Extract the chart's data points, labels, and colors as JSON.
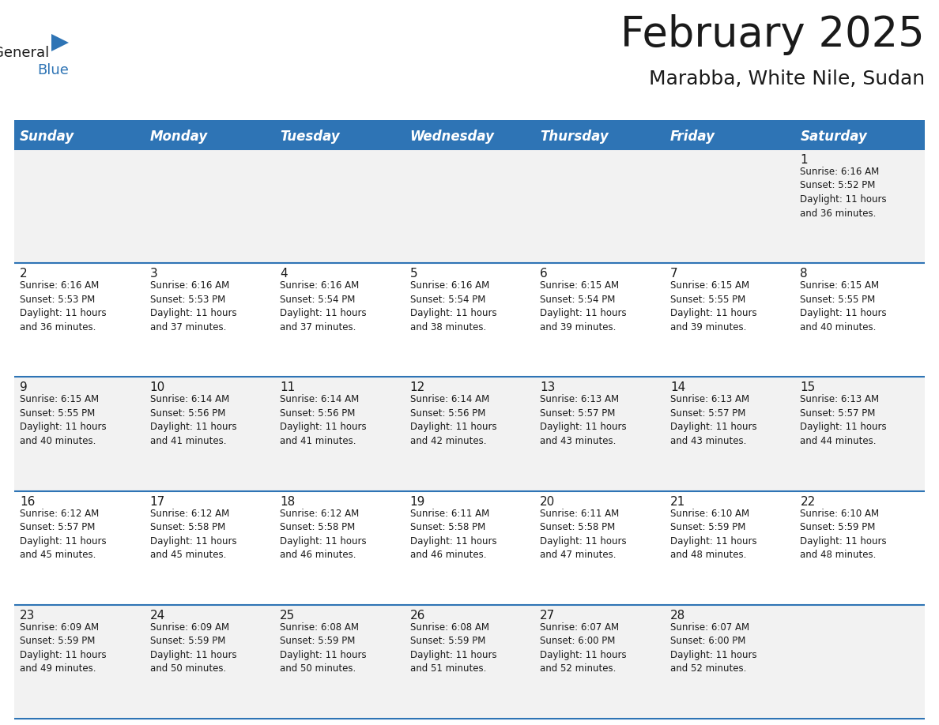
{
  "title": "February 2025",
  "subtitle": "Marabba, White Nile, Sudan",
  "header_color": "#2E74B5",
  "header_text_color": "#FFFFFF",
  "cell_bg_white": "#FFFFFF",
  "cell_bg_gray": "#F2F2F2",
  "border_color": "#2E74B5",
  "text_color": "#1a1a1a",
  "blue_text_color": "#2E74B5",
  "day_headers": [
    "Sunday",
    "Monday",
    "Tuesday",
    "Wednesday",
    "Thursday",
    "Friday",
    "Saturday"
  ],
  "title_fontsize": 38,
  "subtitle_fontsize": 18,
  "header_fontsize": 12,
  "cell_fontsize": 8.5,
  "day_num_fontsize": 11,
  "logo_general_fontsize": 13,
  "logo_blue_fontsize": 13,
  "calendar": [
    [
      {
        "day": null,
        "info": null
      },
      {
        "day": null,
        "info": null
      },
      {
        "day": null,
        "info": null
      },
      {
        "day": null,
        "info": null
      },
      {
        "day": null,
        "info": null
      },
      {
        "day": null,
        "info": null
      },
      {
        "day": 1,
        "info": "Sunrise: 6:16 AM\nSunset: 5:52 PM\nDaylight: 11 hours\nand 36 minutes."
      }
    ],
    [
      {
        "day": 2,
        "info": "Sunrise: 6:16 AM\nSunset: 5:53 PM\nDaylight: 11 hours\nand 36 minutes."
      },
      {
        "day": 3,
        "info": "Sunrise: 6:16 AM\nSunset: 5:53 PM\nDaylight: 11 hours\nand 37 minutes."
      },
      {
        "day": 4,
        "info": "Sunrise: 6:16 AM\nSunset: 5:54 PM\nDaylight: 11 hours\nand 37 minutes."
      },
      {
        "day": 5,
        "info": "Sunrise: 6:16 AM\nSunset: 5:54 PM\nDaylight: 11 hours\nand 38 minutes."
      },
      {
        "day": 6,
        "info": "Sunrise: 6:15 AM\nSunset: 5:54 PM\nDaylight: 11 hours\nand 39 minutes."
      },
      {
        "day": 7,
        "info": "Sunrise: 6:15 AM\nSunset: 5:55 PM\nDaylight: 11 hours\nand 39 minutes."
      },
      {
        "day": 8,
        "info": "Sunrise: 6:15 AM\nSunset: 5:55 PM\nDaylight: 11 hours\nand 40 minutes."
      }
    ],
    [
      {
        "day": 9,
        "info": "Sunrise: 6:15 AM\nSunset: 5:55 PM\nDaylight: 11 hours\nand 40 minutes."
      },
      {
        "day": 10,
        "info": "Sunrise: 6:14 AM\nSunset: 5:56 PM\nDaylight: 11 hours\nand 41 minutes."
      },
      {
        "day": 11,
        "info": "Sunrise: 6:14 AM\nSunset: 5:56 PM\nDaylight: 11 hours\nand 41 minutes."
      },
      {
        "day": 12,
        "info": "Sunrise: 6:14 AM\nSunset: 5:56 PM\nDaylight: 11 hours\nand 42 minutes."
      },
      {
        "day": 13,
        "info": "Sunrise: 6:13 AM\nSunset: 5:57 PM\nDaylight: 11 hours\nand 43 minutes."
      },
      {
        "day": 14,
        "info": "Sunrise: 6:13 AM\nSunset: 5:57 PM\nDaylight: 11 hours\nand 43 minutes."
      },
      {
        "day": 15,
        "info": "Sunrise: 6:13 AM\nSunset: 5:57 PM\nDaylight: 11 hours\nand 44 minutes."
      }
    ],
    [
      {
        "day": 16,
        "info": "Sunrise: 6:12 AM\nSunset: 5:57 PM\nDaylight: 11 hours\nand 45 minutes."
      },
      {
        "day": 17,
        "info": "Sunrise: 6:12 AM\nSunset: 5:58 PM\nDaylight: 11 hours\nand 45 minutes."
      },
      {
        "day": 18,
        "info": "Sunrise: 6:12 AM\nSunset: 5:58 PM\nDaylight: 11 hours\nand 46 minutes."
      },
      {
        "day": 19,
        "info": "Sunrise: 6:11 AM\nSunset: 5:58 PM\nDaylight: 11 hours\nand 46 minutes."
      },
      {
        "day": 20,
        "info": "Sunrise: 6:11 AM\nSunset: 5:58 PM\nDaylight: 11 hours\nand 47 minutes."
      },
      {
        "day": 21,
        "info": "Sunrise: 6:10 AM\nSunset: 5:59 PM\nDaylight: 11 hours\nand 48 minutes."
      },
      {
        "day": 22,
        "info": "Sunrise: 6:10 AM\nSunset: 5:59 PM\nDaylight: 11 hours\nand 48 minutes."
      }
    ],
    [
      {
        "day": 23,
        "info": "Sunrise: 6:09 AM\nSunset: 5:59 PM\nDaylight: 11 hours\nand 49 minutes."
      },
      {
        "day": 24,
        "info": "Sunrise: 6:09 AM\nSunset: 5:59 PM\nDaylight: 11 hours\nand 50 minutes."
      },
      {
        "day": 25,
        "info": "Sunrise: 6:08 AM\nSunset: 5:59 PM\nDaylight: 11 hours\nand 50 minutes."
      },
      {
        "day": 26,
        "info": "Sunrise: 6:08 AM\nSunset: 5:59 PM\nDaylight: 11 hours\nand 51 minutes."
      },
      {
        "day": 27,
        "info": "Sunrise: 6:07 AM\nSunset: 6:00 PM\nDaylight: 11 hours\nand 52 minutes."
      },
      {
        "day": 28,
        "info": "Sunrise: 6:07 AM\nSunset: 6:00 PM\nDaylight: 11 hours\nand 52 minutes."
      },
      {
        "day": null,
        "info": null
      }
    ]
  ]
}
